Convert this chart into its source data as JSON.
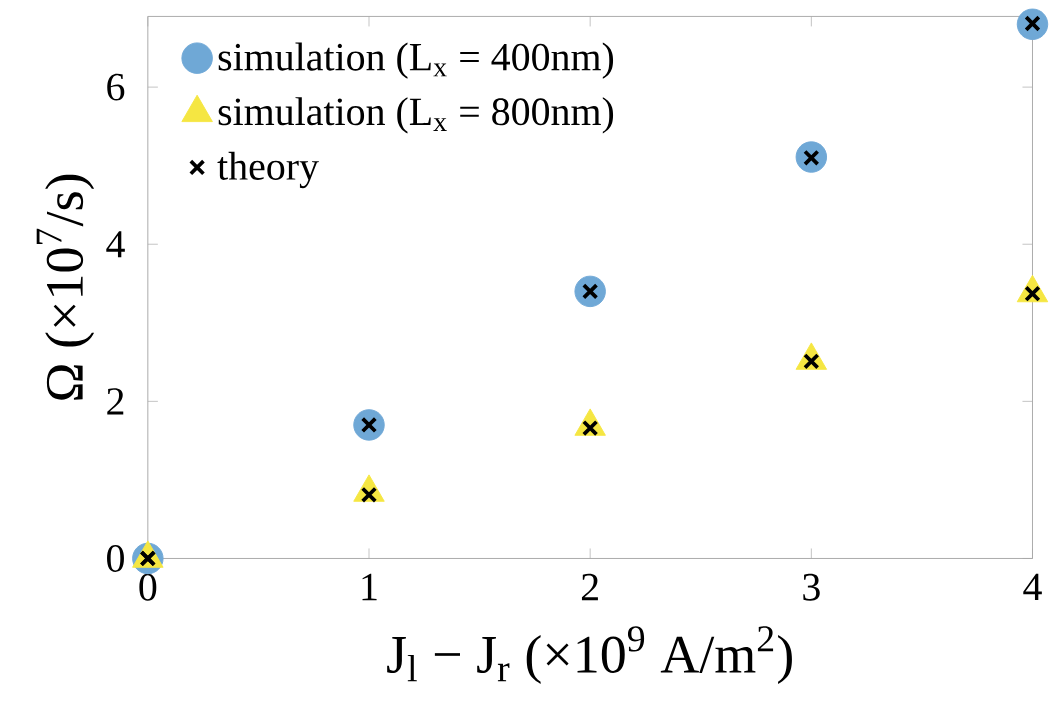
{
  "chart_data": {
    "type": "scatter",
    "xlabel": "J$_{l}$ − J$_{r}$ (×10$^{9}$ A/m$^{2}$)",
    "ylabel": "Ω (×10$^{7}$/s)",
    "x": [
      0,
      1,
      2,
      3,
      4
    ],
    "series": [
      {
        "name": "simulation (L$_{x}$ = 400nm)",
        "color": "#6fa8d6",
        "marker": "circle",
        "values": [
          0,
          1.7,
          3.4,
          5.11,
          6.8
        ]
      },
      {
        "name": "simulation (L$_{x}$ = 800nm)",
        "color": "#f5e642",
        "marker": "triangle",
        "values": [
          0,
          0.84,
          1.68,
          2.52,
          3.38
        ]
      },
      {
        "name": "theory",
        "color": "#000000",
        "marker": "cross",
        "values": [
          0,
          0.81,
          1.66,
          2.51,
          3.37
        ]
      },
      {
        "color": "#000000",
        "marker": "cross",
        "values": [
          0,
          1.7,
          3.4,
          5.1,
          6.81
        ]
      }
    ],
    "xlim": [
      0,
      4
    ],
    "ylim": [
      0,
      6.9
    ],
    "xticks": [
      0,
      1,
      2,
      3,
      4
    ],
    "yticks": [
      0,
      2,
      4,
      6
    ],
    "grid": false,
    "legend": "top left"
  }
}
